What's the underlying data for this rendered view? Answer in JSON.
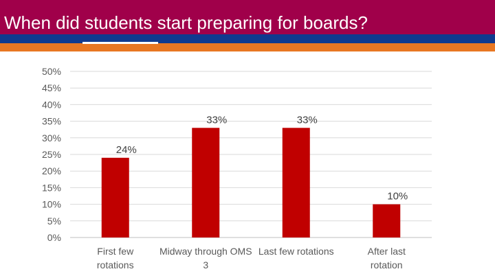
{
  "slide": {
    "title": "When did students start preparing for boards?"
  },
  "colors": {
    "title_bar": "#a0004a",
    "stripe_blue": "#0f3a8f",
    "stripe_orange": "#e87722",
    "bar": "#c00000"
  },
  "chart_data": {
    "type": "bar",
    "categories": [
      "First few rotations",
      "Midway through OMS 3",
      "Last few rotations",
      "After last rotation"
    ],
    "values": [
      24,
      33,
      33,
      10
    ],
    "data_labels": [
      "24%",
      "33%",
      "33%",
      "10%"
    ],
    "yticks": [
      "0%",
      "5%",
      "10%",
      "15%",
      "20%",
      "25%",
      "30%",
      "35%",
      "40%",
      "45%",
      "50%"
    ],
    "ylim": [
      0,
      50
    ],
    "grid": true,
    "legend": "none",
    "title": "",
    "xlabel": "",
    "ylabel": ""
  }
}
